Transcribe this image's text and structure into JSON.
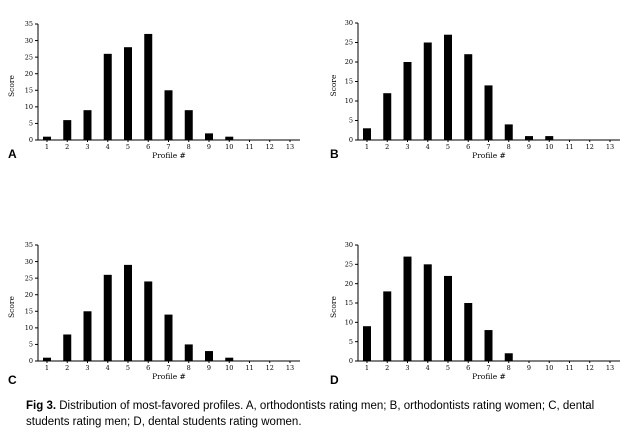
{
  "chart_data": [
    {
      "type": "bar",
      "panel_label": "A",
      "categories": [
        "1",
        "2",
        "3",
        "4",
        "5",
        "6",
        "7",
        "8",
        "9",
        "10",
        "11",
        "12",
        "13"
      ],
      "values": [
        1,
        6,
        9,
        26,
        28,
        32,
        15,
        9,
        2,
        1,
        0,
        0,
        0
      ],
      "xlabel": "Profile #",
      "ylabel": "Score",
      "ylim": [
        0,
        35
      ],
      "yticks": [
        0,
        5,
        10,
        15,
        20,
        25,
        30,
        35
      ],
      "grid": false
    },
    {
      "type": "bar",
      "panel_label": "B",
      "categories": [
        "1",
        "2",
        "3",
        "4",
        "5",
        "6",
        "7",
        "8",
        "9",
        "10",
        "11",
        "12",
        "13"
      ],
      "values": [
        3,
        12,
        20,
        25,
        27,
        22,
        14,
        4,
        1,
        1,
        0,
        0,
        0
      ],
      "xlabel": "Profile #",
      "ylabel": "Score",
      "ylim": [
        0,
        30
      ],
      "yticks": [
        0,
        5,
        10,
        15,
        20,
        25,
        30
      ],
      "grid": false
    },
    {
      "type": "bar",
      "panel_label": "C",
      "categories": [
        "1",
        "2",
        "3",
        "4",
        "5",
        "6",
        "7",
        "8",
        "9",
        "10",
        "11",
        "12",
        "13"
      ],
      "values": [
        1,
        8,
        15,
        26,
        29,
        24,
        14,
        5,
        3,
        1,
        0,
        0,
        0
      ],
      "xlabel": "Profile #",
      "ylabel": "Score",
      "ylim": [
        0,
        35
      ],
      "yticks": [
        0,
        5,
        10,
        15,
        20,
        25,
        30,
        35
      ],
      "grid": false
    },
    {
      "type": "bar",
      "panel_label": "D",
      "categories": [
        "1",
        "2",
        "3",
        "4",
        "5",
        "6",
        "7",
        "8",
        "9",
        "10",
        "11",
        "12",
        "13"
      ],
      "values": [
        9,
        18,
        27,
        25,
        22,
        15,
        8,
        2,
        0,
        0,
        0,
        0,
        0
      ],
      "xlabel": "Profile #",
      "ylabel": "Score",
      "ylim": [
        0,
        30
      ],
      "yticks": [
        0,
        5,
        10,
        15,
        20,
        25,
        30
      ],
      "grid": false
    }
  ],
  "caption": {
    "prefix": "Fig 3.",
    "text": " Distribution of most-favored profiles. A, orthodontists rating men; B, orthodontists rating women; C, dental students rating men; D, dental students rating women."
  }
}
